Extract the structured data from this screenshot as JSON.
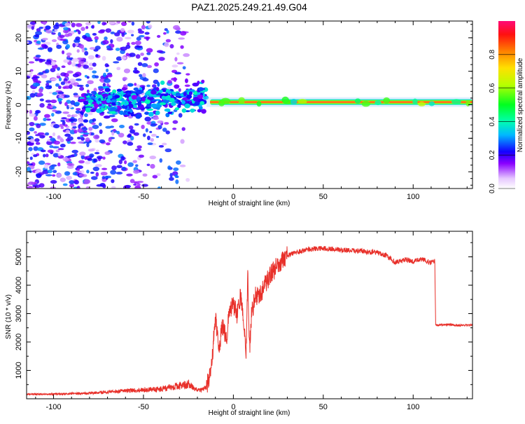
{
  "figure_title": "PAZ1.2025.249.21.49.G04",
  "colors": {
    "snr_line": "#e8302a",
    "spectrogram_band": "#ff2040"
  },
  "chart_data": [
    {
      "type": "heatmap",
      "title": "PAZ1.2025.249.21.49.G04",
      "xlabel": "Height of straight line (km)",
      "ylabel": "Frequency (Hz)",
      "xlim": [
        -115,
        133
      ],
      "ylim": [
        -25,
        25
      ],
      "xticks": [
        -100,
        -50,
        0,
        50,
        100
      ],
      "xtick_labels": [
        "-100",
        "-50",
        "0",
        "50",
        "100"
      ],
      "yticks": [
        -20,
        -10,
        0,
        10,
        20
      ],
      "ytick_labels": [
        "-20",
        "-10",
        "0",
        "10",
        "20"
      ],
      "grid": false,
      "colorbar": {
        "label": "Normalized spectral amplitude",
        "range": [
          0,
          1
        ],
        "ticks": [
          0.0,
          0.2,
          0.4,
          0.6,
          0.8
        ],
        "tick_labels": [
          "0.0",
          "0.2",
          "0.4",
          "0.6",
          "0.8"
        ],
        "colormap": "gist_rainbow_r (white at 0)"
      },
      "features": {
        "noise_region_x": [
          -115,
          -25
        ],
        "noise_level_range": [
          0.05,
          0.3
        ],
        "cluster_region_x": [
          -85,
          -15
        ],
        "cluster_center_freq": 2,
        "main_band": {
          "x_start": -15,
          "x_end": 133,
          "freq": 0.8,
          "peak_amplitude": 0.95
        }
      }
    },
    {
      "type": "line",
      "xlabel": "Height of straight line (km)",
      "ylabel": "SNR (10 * v/v)",
      "xlim": [
        -115,
        133
      ],
      "ylim": [
        0,
        5900
      ],
      "xticks": [
        -100,
        -50,
        0,
        50,
        100
      ],
      "xtick_labels": [
        "-100",
        "-50",
        "0",
        "50",
        "100"
      ],
      "yticks": [
        1000,
        2000,
        3000,
        4000,
        5000
      ],
      "ytick_labels": [
        "1000",
        "2000",
        "3000",
        "4000",
        "5000"
      ],
      "grid": false,
      "series": [
        {
          "x": [
            -115,
            -100,
            -80,
            -60,
            -40,
            -25,
            -20,
            -15,
            -12,
            -10,
            -8,
            -6,
            -4,
            -2,
            0,
            2,
            4,
            6,
            7,
            8,
            9,
            10,
            12,
            15,
            20,
            25,
            30,
            40,
            50,
            60,
            70,
            80,
            85,
            90,
            95,
            100,
            105,
            110,
            112,
            112.5,
            115,
            120,
            125,
            133
          ],
          "y": [
            150,
            150,
            180,
            250,
            300,
            450,
            250,
            350,
            1200,
            2900,
            1800,
            2600,
            2100,
            3100,
            3300,
            3000,
            3600,
            2600,
            1300,
            4600,
            1700,
            2900,
            3600,
            3700,
            4300,
            4750,
            5050,
            5250,
            5300,
            5250,
            5200,
            5150,
            5050,
            4800,
            4900,
            4850,
            4900,
            4800,
            4850,
            2600,
            2600,
            2620,
            2580,
            2600
          ]
        }
      ]
    }
  ]
}
